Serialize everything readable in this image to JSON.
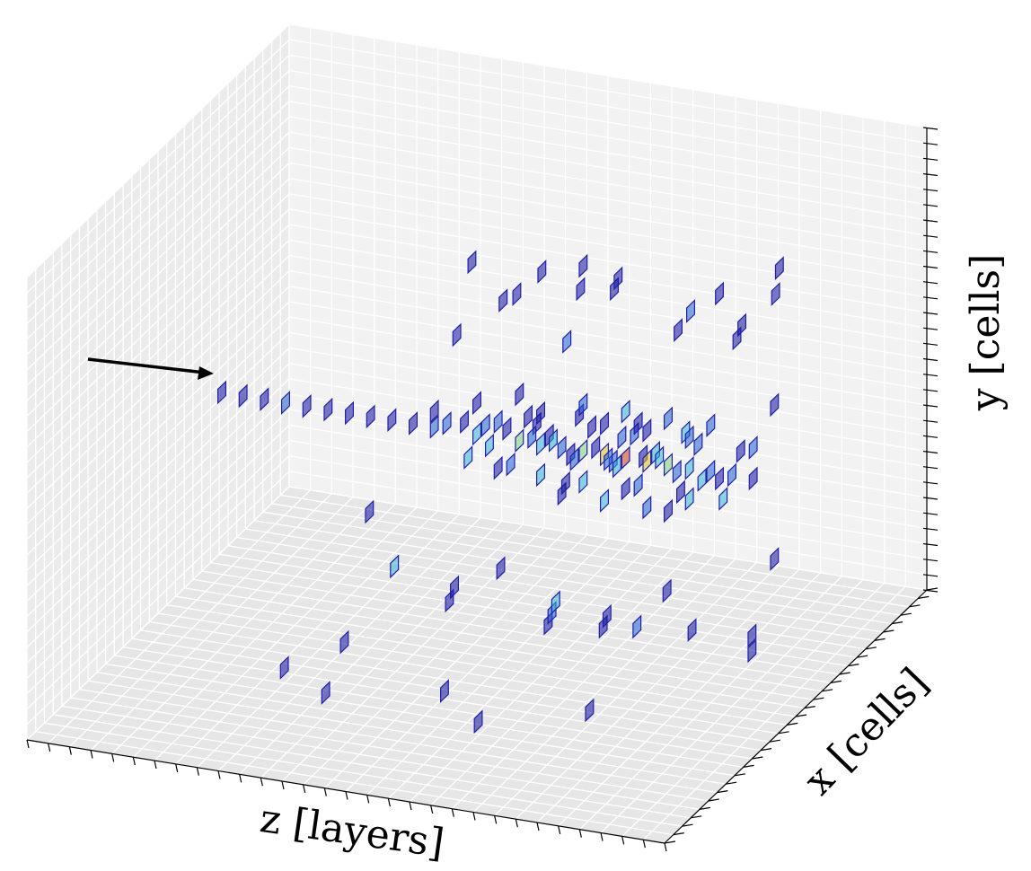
{
  "chart_data": {
    "type": "scatter",
    "projection": "3d",
    "title": "",
    "xlabel": "z [layers]",
    "ylabel": "x [cells]",
    "zlabel": "y [cells]",
    "tick_labels_shown": false,
    "grid": true,
    "xlim": [
      0,
      30
    ],
    "ylim": [
      0,
      30
    ],
    "zlim": [
      0,
      30
    ],
    "colormap": [
      "#1010a0",
      "#1f5fd0",
      "#33b5d5",
      "#7fd27a",
      "#e6c219",
      "#d23a1a"
    ],
    "beam_arrow": true,
    "hits": [
      [
        3,
        15,
        15,
        0
      ],
      [
        4,
        15,
        15,
        0
      ],
      [
        5,
        15,
        15,
        0
      ],
      [
        6,
        15,
        15,
        1
      ],
      [
        7,
        15,
        15,
        0
      ],
      [
        8,
        15,
        15,
        0
      ],
      [
        9,
        15,
        15,
        0
      ],
      [
        10,
        15,
        15,
        0
      ],
      [
        11,
        15,
        15,
        0
      ],
      [
        12,
        15,
        15,
        0
      ],
      [
        13,
        15,
        15,
        1
      ],
      [
        13,
        15,
        16,
        0
      ],
      [
        14,
        14,
        15,
        0
      ],
      [
        14,
        16,
        16,
        1
      ],
      [
        15,
        15,
        15,
        2
      ],
      [
        15,
        14,
        15,
        1
      ],
      [
        15,
        15,
        17,
        0
      ],
      [
        15,
        16,
        14,
        2
      ],
      [
        16,
        14,
        15,
        0
      ],
      [
        16,
        15,
        16,
        1
      ],
      [
        16,
        16,
        15,
        2
      ],
      [
        16,
        15,
        13,
        0
      ],
      [
        17,
        15,
        15,
        3
      ],
      [
        17,
        14,
        16,
        0
      ],
      [
        17,
        16,
        14,
        1
      ],
      [
        17,
        13,
        15,
        0
      ],
      [
        17,
        15,
        18,
        0
      ],
      [
        18,
        15,
        15,
        2
      ],
      [
        18,
        14,
        15,
        0
      ],
      [
        18,
        16,
        16,
        1
      ],
      [
        18,
        15,
        13,
        2
      ],
      [
        18,
        15,
        17,
        0
      ],
      [
        19,
        15,
        15,
        1
      ],
      [
        19,
        14,
        14,
        0
      ],
      [
        19,
        16,
        16,
        2
      ],
      [
        19,
        15,
        12,
        0
      ],
      [
        19,
        13,
        16,
        0
      ],
      [
        20,
        15,
        15,
        3
      ],
      [
        20,
        16,
        15,
        1
      ],
      [
        20,
        14,
        16,
        0
      ],
      [
        20,
        15,
        13,
        2
      ],
      [
        20,
        15,
        18,
        1
      ],
      [
        20,
        17,
        14,
        0
      ],
      [
        21,
        15,
        15,
        4
      ],
      [
        21,
        14,
        14,
        1
      ],
      [
        21,
        16,
        16,
        0
      ],
      [
        21,
        15,
        12,
        2
      ],
      [
        21,
        13,
        15,
        1
      ],
      [
        21,
        15,
        17,
        0
      ],
      [
        22,
        15,
        15,
        5
      ],
      [
        22,
        16,
        15,
        2
      ],
      [
        22,
        14,
        16,
        1
      ],
      [
        22,
        15,
        13,
        0
      ],
      [
        22,
        15,
        18,
        2
      ],
      [
        22,
        17,
        16,
        1
      ],
      [
        22,
        13,
        14,
        0
      ],
      [
        23,
        15,
        15,
        4
      ],
      [
        23,
        14,
        15,
        2
      ],
      [
        23,
        16,
        14,
        1
      ],
      [
        23,
        15,
        17,
        0
      ],
      [
        23,
        15,
        12,
        1
      ],
      [
        23,
        16,
        18,
        0
      ],
      [
        24,
        15,
        15,
        3
      ],
      [
        24,
        16,
        16,
        2
      ],
      [
        24,
        14,
        14,
        1
      ],
      [
        24,
        15,
        12,
        0
      ],
      [
        24,
        13,
        16,
        2
      ],
      [
        24,
        15,
        18,
        1
      ],
      [
        25,
        15,
        15,
        2
      ],
      [
        25,
        14,
        16,
        1
      ],
      [
        25,
        16,
        14,
        0
      ],
      [
        25,
        15,
        13,
        2
      ],
      [
        25,
        15,
        17,
        1
      ],
      [
        26,
        15,
        15,
        1
      ],
      [
        26,
        16,
        15,
        2
      ],
      [
        26,
        14,
        14,
        0
      ],
      [
        26,
        15,
        18,
        1
      ],
      [
        27,
        15,
        15,
        1
      ],
      [
        27,
        14,
        16,
        0
      ],
      [
        27,
        16,
        14,
        2
      ],
      [
        28,
        15,
        15,
        0
      ],
      [
        28,
        15,
        17,
        1
      ],
      [
        12,
        10,
        18,
        0
      ],
      [
        12,
        20,
        12,
        0
      ],
      [
        14,
        8,
        20,
        0
      ],
      [
        14,
        22,
        10,
        2
      ],
      [
        15,
        12,
        22,
        0
      ],
      [
        16,
        20,
        8,
        0
      ],
      [
        16,
        10,
        23,
        0
      ],
      [
        17,
        8,
        21,
        0
      ],
      [
        17,
        23,
        9,
        0
      ],
      [
        18,
        12,
        20,
        1
      ],
      [
        19,
        22,
        11,
        0
      ],
      [
        19,
        9,
        22,
        0
      ],
      [
        20,
        19,
        6,
        0
      ],
      [
        20,
        11,
        24,
        0
      ],
      [
        21,
        21,
        8,
        1
      ],
      [
        22,
        9,
        20,
        0
      ],
      [
        22,
        23,
        10,
        2
      ],
      [
        23,
        20,
        7,
        0
      ],
      [
        23,
        10,
        22,
        1
      ],
      [
        24,
        22,
        9,
        0
      ],
      [
        25,
        9,
        21,
        0
      ],
      [
        25,
        21,
        8,
        1
      ],
      [
        26,
        12,
        22,
        0
      ],
      [
        26,
        20,
        10,
        0
      ],
      [
        27,
        10,
        24,
        0
      ],
      [
        28,
        22,
        9,
        0
      ],
      [
        29,
        15,
        20,
        0
      ],
      [
        29,
        15,
        10,
        0
      ],
      [
        18,
        26,
        5,
        0
      ],
      [
        20,
        27,
        4,
        0
      ],
      [
        24,
        24,
        4,
        0
      ],
      [
        16,
        18,
        28,
        0
      ],
      [
        20,
        15,
        27,
        0
      ],
      [
        26,
        14,
        26,
        0
      ],
      [
        28,
        12,
        27,
        0
      ],
      [
        10,
        18,
        2,
        0
      ],
      [
        8,
        20,
        1,
        0
      ],
      [
        12,
        25,
        3,
        0
      ],
      [
        30,
        20,
        8,
        0
      ],
      [
        30,
        20,
        7,
        0
      ]
    ]
  }
}
